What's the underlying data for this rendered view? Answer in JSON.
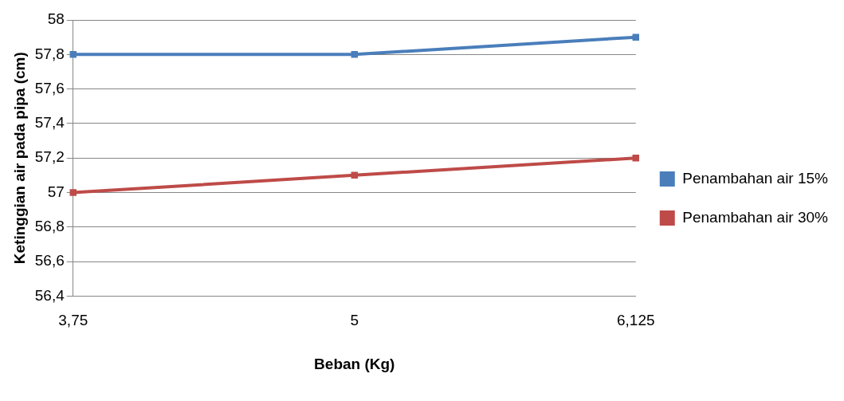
{
  "chart_data": {
    "type": "line",
    "xlabel": "Beban (Kg)",
    "ylabel": "Ketinggian air pada pipa (cm)",
    "categories": [
      "3,75",
      "5",
      "6,125"
    ],
    "series": [
      {
        "name": "Penambahan air 15%",
        "color": "#4a7ebb",
        "values": [
          57.8,
          57.8,
          57.9
        ]
      },
      {
        "name": "Penambahan air 30%",
        "color": "#be4b48",
        "values": [
          57,
          57.1,
          57.2
        ]
      }
    ],
    "ylim": [
      56.4,
      58
    ],
    "yticks": [
      {
        "value": 56.4,
        "label": "56,4"
      },
      {
        "value": 56.6,
        "label": "56,6"
      },
      {
        "value": 56.8,
        "label": "56,8"
      },
      {
        "value": 57,
        "label": "57"
      },
      {
        "value": 57.2,
        "label": "57,2"
      },
      {
        "value": 57.4,
        "label": "57,4"
      },
      {
        "value": 57.6,
        "label": "57,6"
      },
      {
        "value": 57.8,
        "label": "57,8"
      },
      {
        "value": 58,
        "label": "58"
      }
    ],
    "grid": "y",
    "legend": "right",
    "marker": "square",
    "line_style": "solid"
  }
}
